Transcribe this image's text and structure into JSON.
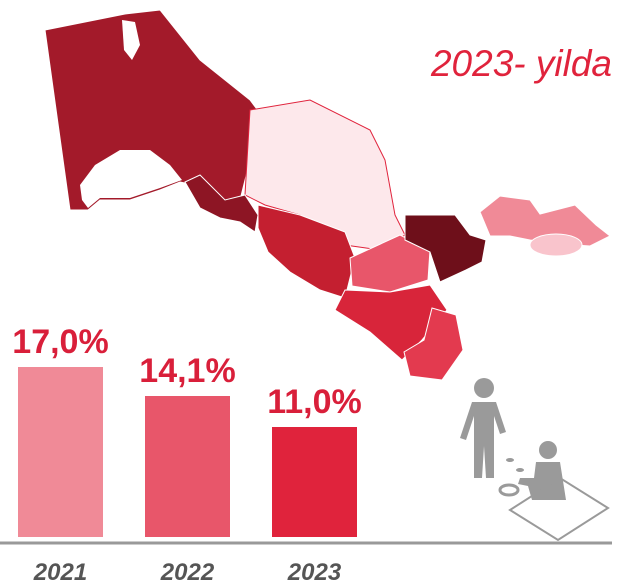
{
  "chart_data": {
    "type": "bar",
    "title": "2023- yilda",
    "categories": [
      "2021",
      "2022",
      "2023"
    ],
    "values": [
      17.0,
      14.1,
      11.0
    ],
    "value_labels": [
      "17,0%",
      "14,1%",
      "11,0%"
    ],
    "colors": [
      "#f08a97",
      "#e8566a",
      "#e0233c"
    ]
  }
}
